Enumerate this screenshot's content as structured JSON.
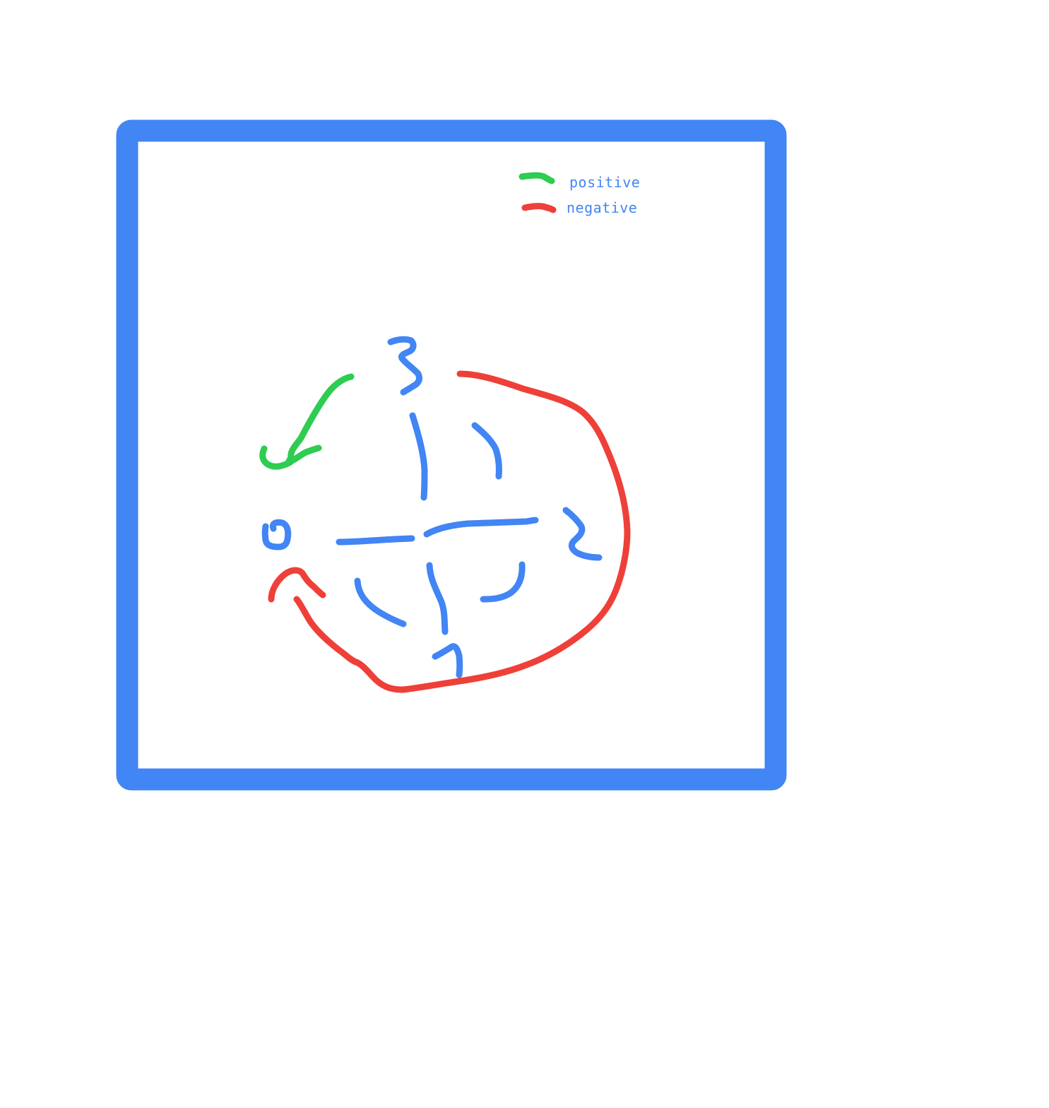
{
  "legend": {
    "positive_label": "positive",
    "negative_label": "negative"
  },
  "nodes": [
    "0",
    "1",
    "2",
    "3"
  ],
  "edges": [
    {
      "from": "3",
      "to": "0",
      "type": "positive"
    },
    {
      "from": "3",
      "to": "0",
      "type": "negative"
    }
  ],
  "colors": {
    "frame": "#4285f4",
    "diagram_strokes": "#4285f4",
    "positive": "#2ecc51",
    "negative": "#ee4038",
    "text": "#4285f4",
    "background": "#ffffff"
  }
}
